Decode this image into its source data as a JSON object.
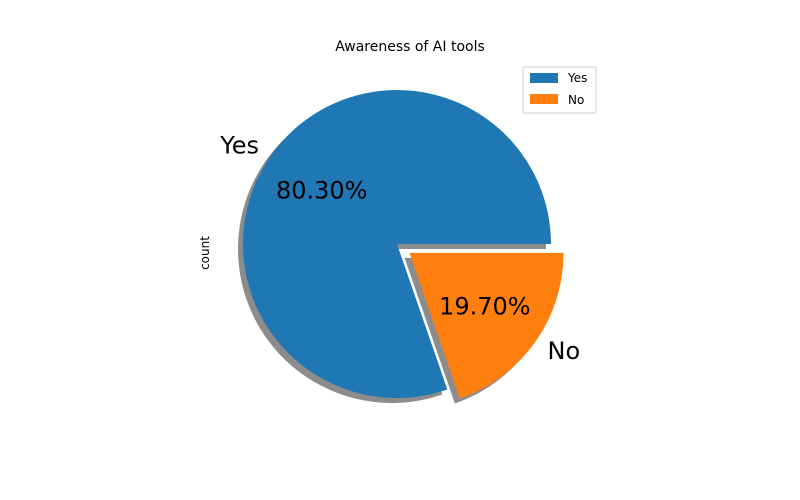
{
  "chart_data": {
    "type": "pie",
    "title": "Awareness of AI tools",
    "ylabel": "count",
    "categories": [
      "Yes",
      "No"
    ],
    "values": [
      80.3,
      19.7
    ],
    "percent_labels": [
      "80.30%",
      "19.70%"
    ],
    "colors": [
      "#1f77b4",
      "#ff7f0e"
    ],
    "explode": [
      0,
      0.1
    ],
    "shadow": true,
    "legend": {
      "position": "top-right",
      "entries": [
        "Yes",
        "No"
      ]
    }
  }
}
